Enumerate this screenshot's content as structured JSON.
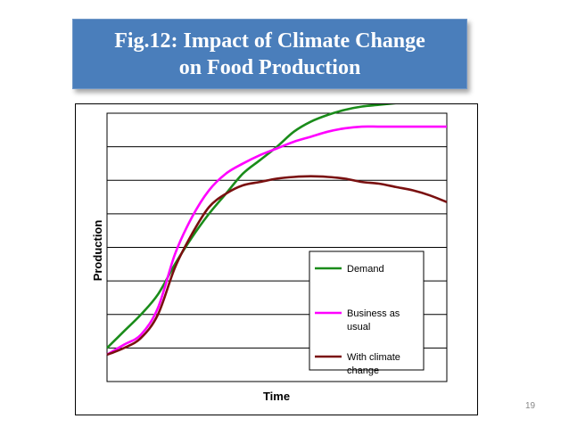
{
  "slide": {
    "title_line1": "Fig.12: Impact of Climate Change",
    "title_line2": "on Food Production",
    "page_number": "19"
  },
  "chart_data": {
    "type": "line",
    "title": "Fig.12: Impact of Climate Change on Food Production",
    "xlabel": "Time",
    "ylabel": "Production",
    "xlim": [
      0,
      100
    ],
    "ylim": [
      0,
      8
    ],
    "grid": true,
    "legend_position": "bottom-right",
    "x": [
      0,
      5,
      10,
      15,
      20,
      25,
      30,
      35,
      40,
      45,
      50,
      55,
      60,
      65,
      70,
      75,
      80,
      85,
      90,
      95,
      100
    ],
    "series": [
      {
        "name": "Demand",
        "color": "#1a8c1a",
        "values": [
          1.0,
          1.5,
          2.0,
          2.6,
          3.5,
          4.3,
          5.0,
          5.6,
          6.2,
          6.6,
          7.0,
          7.45,
          7.75,
          7.95,
          8.1,
          8.2,
          8.25,
          8.3,
          8.35,
          8.33,
          8.33
        ]
      },
      {
        "name": "Business as usual",
        "color": "#ff00ff",
        "values": [
          0.8,
          1.1,
          1.4,
          2.2,
          3.8,
          4.9,
          5.7,
          6.2,
          6.5,
          6.75,
          6.95,
          7.15,
          7.3,
          7.45,
          7.55,
          7.6,
          7.6,
          7.6,
          7.6,
          7.6,
          7.6
        ]
      },
      {
        "name": "With climate change",
        "color": "#7a1010",
        "values": [
          0.8,
          1.0,
          1.3,
          2.0,
          3.4,
          4.4,
          5.2,
          5.6,
          5.85,
          5.95,
          6.05,
          6.1,
          6.12,
          6.1,
          6.05,
          5.95,
          5.9,
          5.8,
          5.7,
          5.55,
          5.35
        ]
      }
    ]
  }
}
